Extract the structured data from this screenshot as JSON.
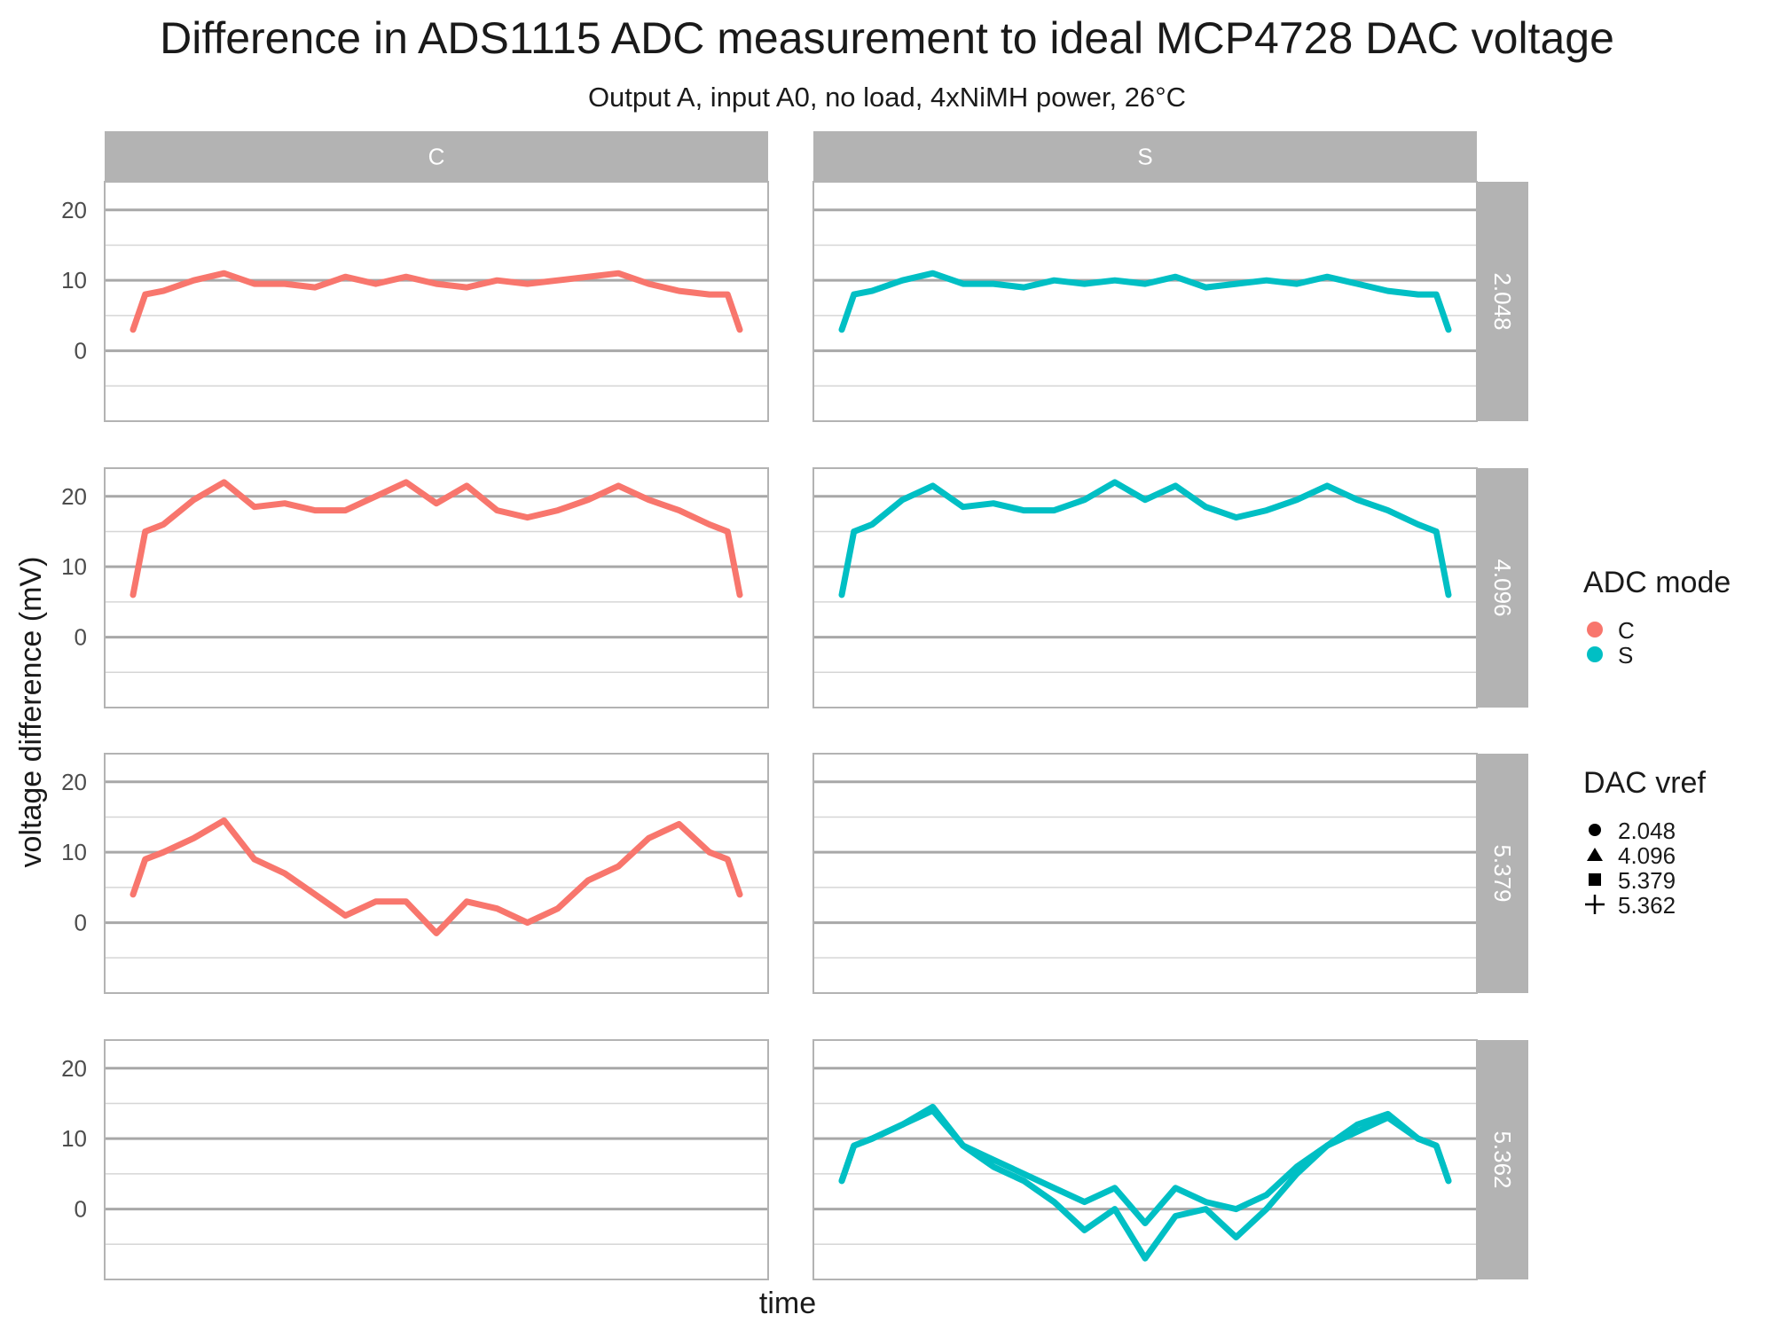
{
  "chart_data": {
    "type": "line",
    "title": "Difference in ADS1115 ADC measurement to ideal MCP4728 DAC voltage",
    "subtitle": "Output A, input A0, no load, 4xNiMH power, 26°C",
    "xlabel": "time",
    "ylabel": "voltage difference (mV)",
    "ylim": [
      -10,
      24
    ],
    "y_ticks": [
      "0",
      "10",
      "20"
    ],
    "grid": true,
    "facet_columns": [
      "C",
      "S"
    ],
    "facet_rows": [
      "2.048",
      "4.096",
      "5.379",
      "5.362"
    ],
    "legend_placement": "right",
    "colors": {
      "C": "#F8766D",
      "S": "#00BFC4"
    },
    "legends": [
      {
        "title": "ADC mode",
        "items": [
          {
            "label": "C",
            "color": "#F8766D",
            "shape": "circle"
          },
          {
            "label": "S",
            "color": "#00BFC4",
            "shape": "circle"
          }
        ]
      },
      {
        "title": "DAC vref",
        "items": [
          {
            "label": "2.048",
            "shape": "circle"
          },
          {
            "label": "4.096",
            "shape": "triangle"
          },
          {
            "label": "5.379",
            "shape": "square"
          },
          {
            "label": "5.362",
            "shape": "plus"
          }
        ]
      }
    ],
    "x": [
      0,
      0.02,
      0.05,
      0.1,
      0.15,
      0.2,
      0.25,
      0.3,
      0.35,
      0.4,
      0.45,
      0.5,
      0.55,
      0.6,
      0.65,
      0.7,
      0.75,
      0.8,
      0.85,
      0.9,
      0.95,
      0.98,
      1
    ],
    "series": [
      {
        "name": "C",
        "vref": "2.048",
        "row": 0,
        "col": 0,
        "values": [
          3,
          8,
          8.5,
          10,
          11,
          9.5,
          9.5,
          9,
          10.5,
          9.5,
          10.5,
          9.5,
          9,
          10,
          9.5,
          10,
          10.5,
          11,
          9.5,
          8.5,
          8,
          8,
          3
        ]
      },
      {
        "name": "S",
        "vref": "2.048",
        "row": 0,
        "col": 1,
        "values": [
          3,
          8,
          8.5,
          10,
          11,
          9.5,
          9.5,
          9,
          10,
          9.5,
          10,
          9.5,
          10.5,
          9,
          9.5,
          10,
          9.5,
          10.5,
          9.5,
          8.5,
          8,
          8,
          3
        ]
      },
      {
        "name": "C",
        "vref": "4.096",
        "row": 1,
        "col": 0,
        "values": [
          6,
          15,
          16,
          19.5,
          22,
          18.5,
          19,
          18,
          18,
          20,
          22,
          19,
          21.5,
          18,
          17,
          18,
          19.5,
          21.5,
          19.5,
          18,
          16,
          15,
          6
        ]
      },
      {
        "name": "S",
        "vref": "4.096",
        "row": 1,
        "col": 1,
        "values": [
          6,
          15,
          16,
          19.5,
          21.5,
          18.5,
          19,
          18,
          18,
          19.5,
          22,
          19.5,
          21.5,
          18.5,
          17,
          18,
          19.5,
          21.5,
          19.5,
          18,
          16,
          15,
          6
        ]
      },
      {
        "name": "C",
        "vref": "5.379",
        "row": 2,
        "col": 0,
        "values": [
          4,
          9,
          10,
          12,
          14.5,
          9,
          7,
          4,
          1,
          3,
          3,
          -1.5,
          3,
          2,
          0,
          2,
          6,
          8,
          12,
          14,
          10,
          9,
          4
        ]
      },
      {
        "name": "S",
        "vref": "5.362",
        "row": 3,
        "col": 1,
        "values": [
          4,
          9,
          10,
          12,
          14.5,
          9,
          6,
          4,
          1,
          -3,
          0,
          -7,
          -1,
          0,
          -4,
          0,
          5,
          9,
          12,
          13.5,
          10,
          9,
          4
        ]
      },
      {
        "name": "S",
        "vref": "5.362",
        "row": 3,
        "col": 1,
        "values": [
          4,
          9,
          10,
          12,
          14,
          9,
          7,
          5,
          3,
          1,
          3,
          -2,
          3,
          1,
          0,
          2,
          6,
          9,
          11,
          13,
          10,
          9,
          4
        ]
      }
    ]
  }
}
